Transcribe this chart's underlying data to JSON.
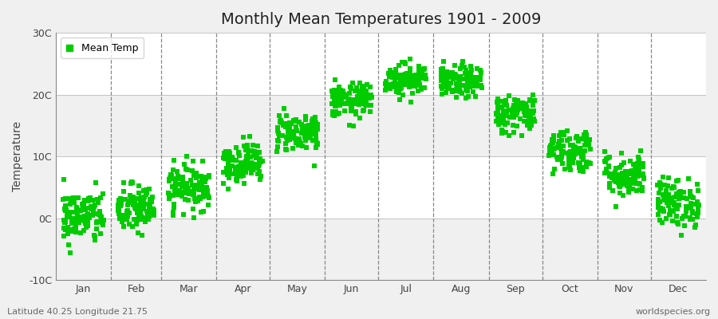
{
  "title": "Monthly Mean Temperatures 1901 - 2009",
  "ylabel": "Temperature",
  "xlabel_labels": [
    "Jan",
    "Feb",
    "Mar",
    "Apr",
    "May",
    "Jun",
    "Jul",
    "Aug",
    "Sep",
    "Oct",
    "Nov",
    "Dec"
  ],
  "yticks": [
    -10,
    0,
    10,
    20,
    30
  ],
  "ytick_labels": [
    "-10C",
    "0C",
    "10C",
    "20C",
    "30C"
  ],
  "ylim": [
    -10,
    30
  ],
  "fig_background_color": "#f0f0f0",
  "plot_bg_color": "#ffffff",
  "marker_color": "#00cc00",
  "marker": "s",
  "marker_size": 4,
  "legend_label": "Mean Temp",
  "subtitle": "Latitude 40.25 Longitude 21.75",
  "watermark": "worldspecies.org",
  "n_years": 109,
  "monthly_means": [
    0.2,
    1.5,
    5.0,
    9.0,
    14.0,
    19.0,
    22.5,
    22.0,
    17.0,
    11.0,
    7.0,
    2.5
  ],
  "monthly_stds": [
    2.2,
    2.0,
    1.8,
    1.6,
    1.6,
    1.4,
    1.3,
    1.3,
    1.6,
    1.8,
    1.8,
    2.0
  ],
  "band_colors": [
    "#f0f0f0",
    "#ffffff"
  ]
}
